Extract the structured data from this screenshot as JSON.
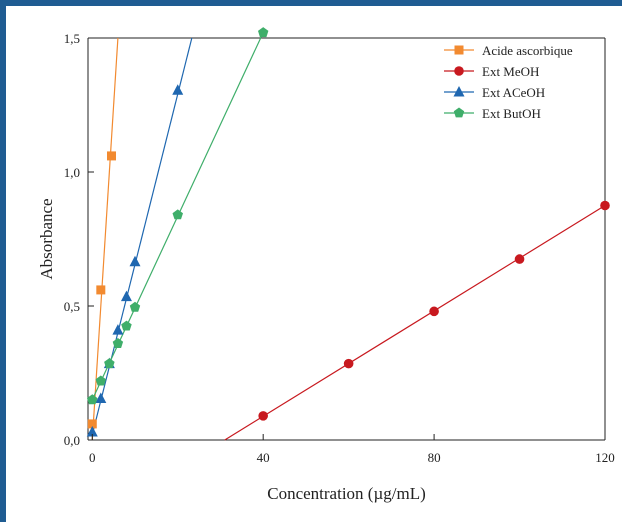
{
  "chart_data": {
    "type": "scatter",
    "xlabel": "Concentration (µg/mL)",
    "ylabel": "Absorbance",
    "xlim": [
      -1,
      120
    ],
    "ylim": [
      0,
      1.5
    ],
    "xticks": [
      {
        "value": 0,
        "label": "0"
      },
      {
        "value": 40,
        "label": "40"
      },
      {
        "value": 80,
        "label": "80"
      },
      {
        "value": 120,
        "label": "120"
      }
    ],
    "yticks": [
      {
        "value": 0,
        "label": "0,0"
      },
      {
        "value": 0.5,
        "label": "0,5"
      },
      {
        "value": 1.0,
        "label": "1,0"
      },
      {
        "value": 1.5,
        "label": "1,5"
      }
    ],
    "legend_position": "top-right",
    "grid": false,
    "series": [
      {
        "name": "Acide ascorbique",
        "color": "#f28a30",
        "marker": "square",
        "points": [
          [
            0,
            0.06
          ],
          [
            2,
            0.56
          ],
          [
            4.5,
            1.06
          ]
        ],
        "fit": [
          [
            0,
            0.0
          ],
          [
            6,
            1.5
          ]
        ]
      },
      {
        "name": "Ext MeOH",
        "color": "#c8191f",
        "marker": "circle",
        "points": [
          [
            40,
            0.09
          ],
          [
            60,
            0.285
          ],
          [
            80,
            0.48
          ],
          [
            100,
            0.675
          ],
          [
            120,
            0.875
          ]
        ],
        "fit": [
          [
            31,
            0.0
          ],
          [
            120,
            0.875
          ]
        ]
      },
      {
        "name": "Ext ACeOH",
        "color": "#1f67b0",
        "marker": "triangle",
        "points": [
          [
            0,
            0.03
          ],
          [
            2,
            0.155
          ],
          [
            4,
            0.285
          ],
          [
            6,
            0.41
          ],
          [
            8,
            0.535
          ],
          [
            10,
            0.665
          ],
          [
            20,
            1.305
          ]
        ],
        "fit": [
          [
            0,
            0.02
          ],
          [
            23.3,
            1.5
          ]
        ]
      },
      {
        "name": "Ext ButOH",
        "color": "#3fae6a",
        "marker": "pentagon",
        "points": [
          [
            0,
            0.15
          ],
          [
            2,
            0.22
          ],
          [
            4,
            0.285
          ],
          [
            6,
            0.36
          ],
          [
            8,
            0.425
          ],
          [
            10,
            0.495
          ],
          [
            20,
            0.84
          ],
          [
            40,
            1.52
          ]
        ],
        "fit": [
          [
            0,
            0.15
          ],
          [
            40,
            1.52
          ]
        ]
      }
    ]
  }
}
